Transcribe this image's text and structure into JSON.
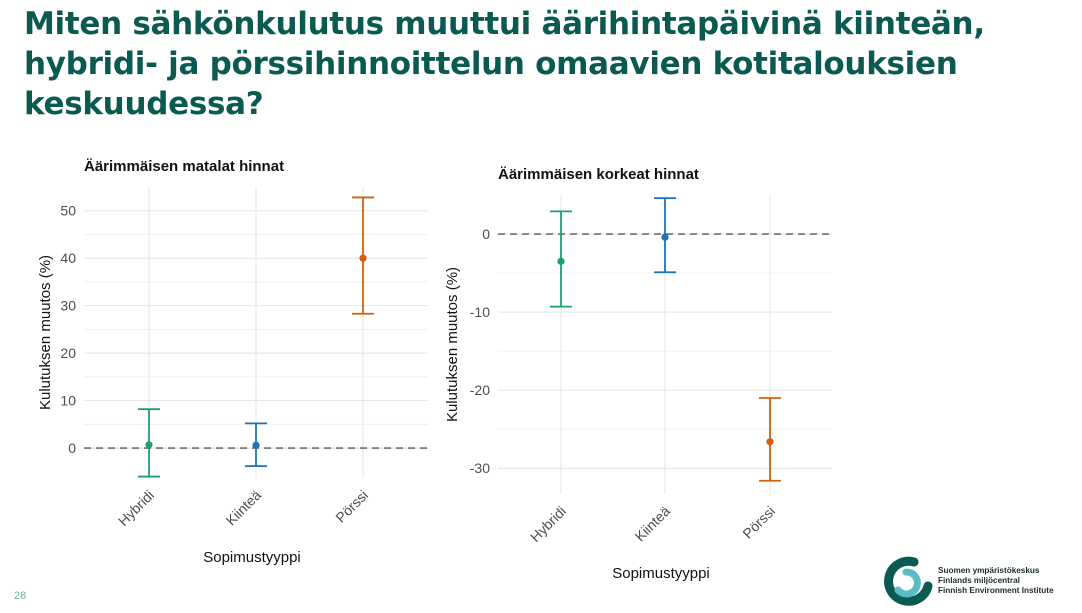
{
  "title": "Miten sähkönkulutus muuttui äärihintapäivinä kiinteän, hybridi- ja pörssihinnoittelun omaavien kotitalouksien keskuudessa?",
  "page_number": "28",
  "logo": {
    "lines": [
      "Suomen ympäristökeskus",
      "Finlands miljöcentral",
      "Finnish Environment Institute"
    ],
    "colors": {
      "dark": "#0b5a52",
      "light": "#5bbcc6"
    }
  },
  "colors": {
    "Hybridi": "#1b9e77",
    "Kiinteä": "#1f72b4",
    "Pörssi": "#d2600f",
    "title": "#0b5a52"
  },
  "chart_data": [
    {
      "type": "errorbar",
      "title": "Äärimmäisen matalat hinnat",
      "xlabel": "Sopimustyyppi",
      "ylabel": "Kulutuksen muutos (%)",
      "categories": [
        "Hybridi",
        "Kiinteä",
        "Pörssi"
      ],
      "values": [
        0.7,
        0.6,
        40.0
      ],
      "lower": [
        -6.0,
        -3.8,
        28.3
      ],
      "upper": [
        8.2,
        5.2,
        52.8
      ],
      "yticks": [
        0,
        10,
        20,
        30,
        40,
        50
      ],
      "ylim": [
        -6.3,
        55
      ],
      "reference_line": 0,
      "grid": true
    },
    {
      "type": "errorbar",
      "title": "Äärimmäisen korkeat hinnat",
      "xlabel": "Sopimustyyppi",
      "ylabel": "Kulutuksen muutos (%)",
      "categories": [
        "Hybridi",
        "Kiinteä",
        "Pörssi"
      ],
      "values": [
        -3.5,
        -0.4,
        -26.6
      ],
      "lower": [
        -9.3,
        -4.9,
        -31.6
      ],
      "upper": [
        2.9,
        4.6,
        -21.0
      ],
      "yticks": [
        -30,
        -20,
        -10,
        0
      ],
      "ylim": [
        -33.3,
        5.0
      ],
      "reference_line": 0,
      "grid": true
    }
  ]
}
